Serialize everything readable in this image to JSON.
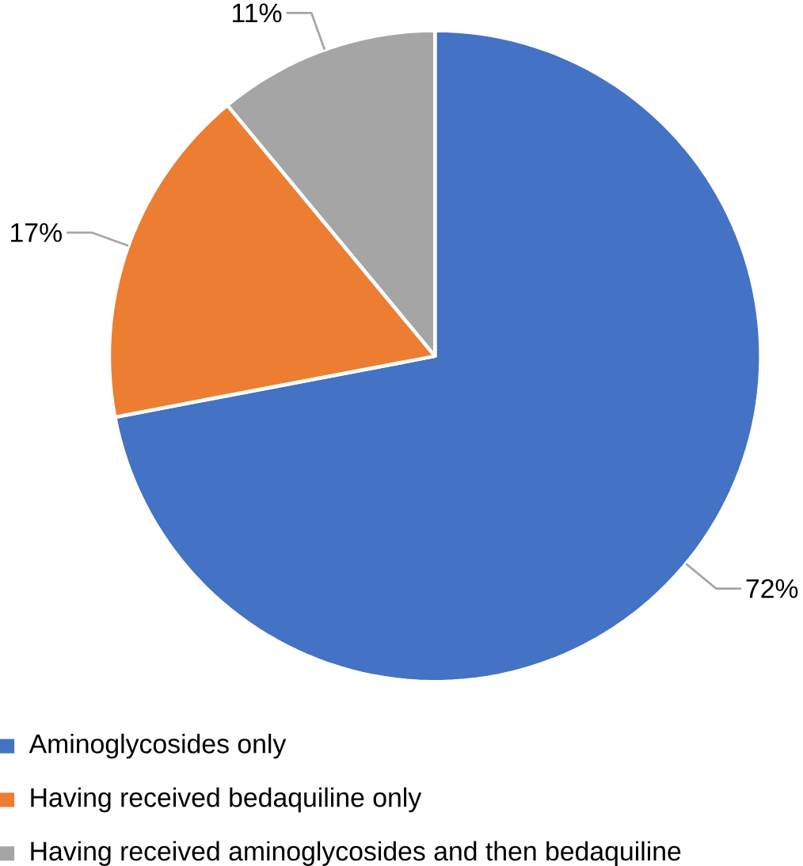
{
  "chart_data": {
    "type": "pie",
    "categories": [
      "Aminoglycosides only",
      "Having received bedaquiline only",
      "Having received aminoglycosides and then bedaquiline"
    ],
    "values": [
      72,
      17,
      11
    ],
    "value_labels": [
      "72%",
      "17%",
      "11%"
    ],
    "colors": [
      "#4472c4",
      "#ed7d31",
      "#a5a5a5"
    ],
    "legend": "bottom"
  }
}
